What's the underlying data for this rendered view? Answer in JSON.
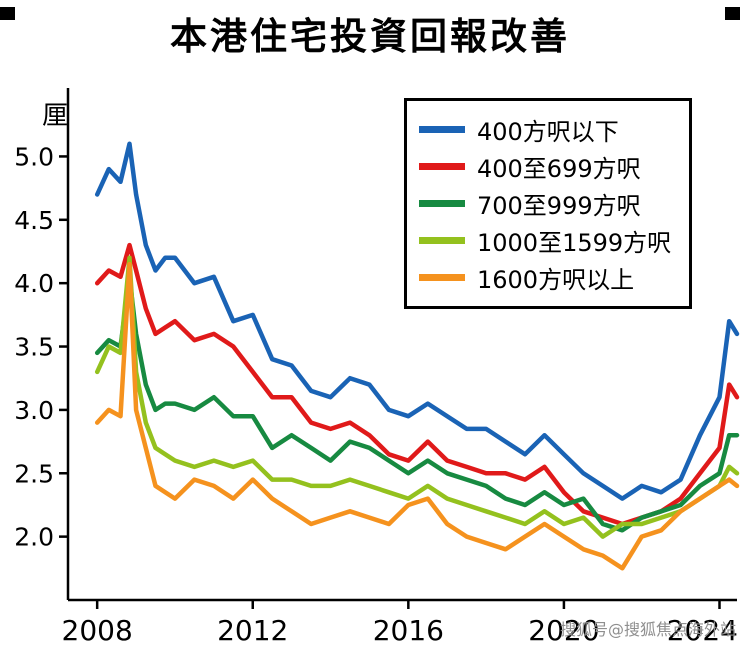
{
  "page": {
    "title": "本港住宅投資回報改善",
    "watermark": "搜狐号@搜狐焦点海外站"
  },
  "chart_data": {
    "type": "line",
    "title": "本港住宅投資回報改善",
    "ylabel": "厘",
    "xlabel": "",
    "x_range": [
      2007.25,
      2024.45
    ],
    "y_range": [
      1.5,
      5.54
    ],
    "yticks": [
      2.0,
      2.5,
      3.0,
      3.5,
      4.0,
      4.5,
      5.0
    ],
    "xticks": [
      2008,
      2012,
      2016,
      2020,
      2024
    ],
    "grid": false,
    "legend_position": "top-right",
    "axis_color": "#000000",
    "x": [
      2008,
      2008.3,
      2008.6,
      2008.83,
      2009,
      2009.25,
      2009.5,
      2009.75,
      2010,
      2010.5,
      2011,
      2011.5,
      2012,
      2012.5,
      2013,
      2013.5,
      2014,
      2014.5,
      2015,
      2015.5,
      2016,
      2016.5,
      2017,
      2017.5,
      2018,
      2018.5,
      2019,
      2019.5,
      2020,
      2020.5,
      2021,
      2021.5,
      2022,
      2022.5,
      2023,
      2023.5,
      2024,
      2024.25,
      2024.45
    ],
    "series": [
      {
        "name": "400方呎以下",
        "color": "#1a63b5",
        "values": [
          4.7,
          4.9,
          4.8,
          5.1,
          4.7,
          4.3,
          4.1,
          4.2,
          4.2,
          4.0,
          4.05,
          3.7,
          3.75,
          3.4,
          3.35,
          3.15,
          3.1,
          3.25,
          3.2,
          3.0,
          2.95,
          3.05,
          2.95,
          2.85,
          2.85,
          2.75,
          2.65,
          2.8,
          2.65,
          2.5,
          2.4,
          2.3,
          2.4,
          2.35,
          2.45,
          2.8,
          3.1,
          3.7,
          3.6
        ]
      },
      {
        "name": "400至699方呎",
        "color": "#e01a1a",
        "values": [
          4.0,
          4.1,
          4.05,
          4.3,
          4.1,
          3.8,
          3.6,
          3.65,
          3.7,
          3.55,
          3.6,
          3.5,
          3.3,
          3.1,
          3.1,
          2.9,
          2.85,
          2.9,
          2.8,
          2.65,
          2.6,
          2.75,
          2.6,
          2.55,
          2.5,
          2.5,
          2.45,
          2.55,
          2.35,
          2.2,
          2.15,
          2.1,
          2.15,
          2.2,
          2.3,
          2.5,
          2.7,
          3.2,
          3.1
        ]
      },
      {
        "name": "700至999方呎",
        "color": "#178a41",
        "values": [
          3.45,
          3.55,
          3.5,
          4.05,
          3.6,
          3.2,
          3.0,
          3.05,
          3.05,
          3.0,
          3.1,
          2.95,
          2.95,
          2.7,
          2.8,
          2.7,
          2.6,
          2.75,
          2.7,
          2.6,
          2.5,
          2.6,
          2.5,
          2.45,
          2.4,
          2.3,
          2.25,
          2.35,
          2.25,
          2.3,
          2.1,
          2.05,
          2.15,
          2.2,
          2.25,
          2.4,
          2.5,
          2.8,
          2.8
        ]
      },
      {
        "name": "1000至1599方呎",
        "color": "#94c11e",
        "values": [
          3.3,
          3.5,
          3.45,
          4.2,
          3.3,
          2.9,
          2.7,
          2.65,
          2.6,
          2.55,
          2.6,
          2.55,
          2.6,
          2.45,
          2.45,
          2.4,
          2.4,
          2.45,
          2.4,
          2.35,
          2.3,
          2.4,
          2.3,
          2.25,
          2.2,
          2.15,
          2.1,
          2.2,
          2.1,
          2.15,
          2.0,
          2.1,
          2.1,
          2.15,
          2.2,
          2.3,
          2.4,
          2.55,
          2.5
        ]
      },
      {
        "name": "1600方呎以上",
        "color": "#f5921e",
        "values": [
          2.9,
          3.0,
          2.95,
          4.15,
          3.0,
          2.7,
          2.4,
          2.35,
          2.3,
          2.45,
          2.4,
          2.3,
          2.45,
          2.3,
          2.2,
          2.1,
          2.15,
          2.2,
          2.15,
          2.1,
          2.25,
          2.3,
          2.1,
          2.0,
          1.95,
          1.9,
          2.0,
          2.1,
          2.0,
          1.9,
          1.85,
          1.75,
          2.0,
          2.05,
          2.2,
          2.3,
          2.4,
          2.45,
          2.4
        ]
      }
    ]
  }
}
